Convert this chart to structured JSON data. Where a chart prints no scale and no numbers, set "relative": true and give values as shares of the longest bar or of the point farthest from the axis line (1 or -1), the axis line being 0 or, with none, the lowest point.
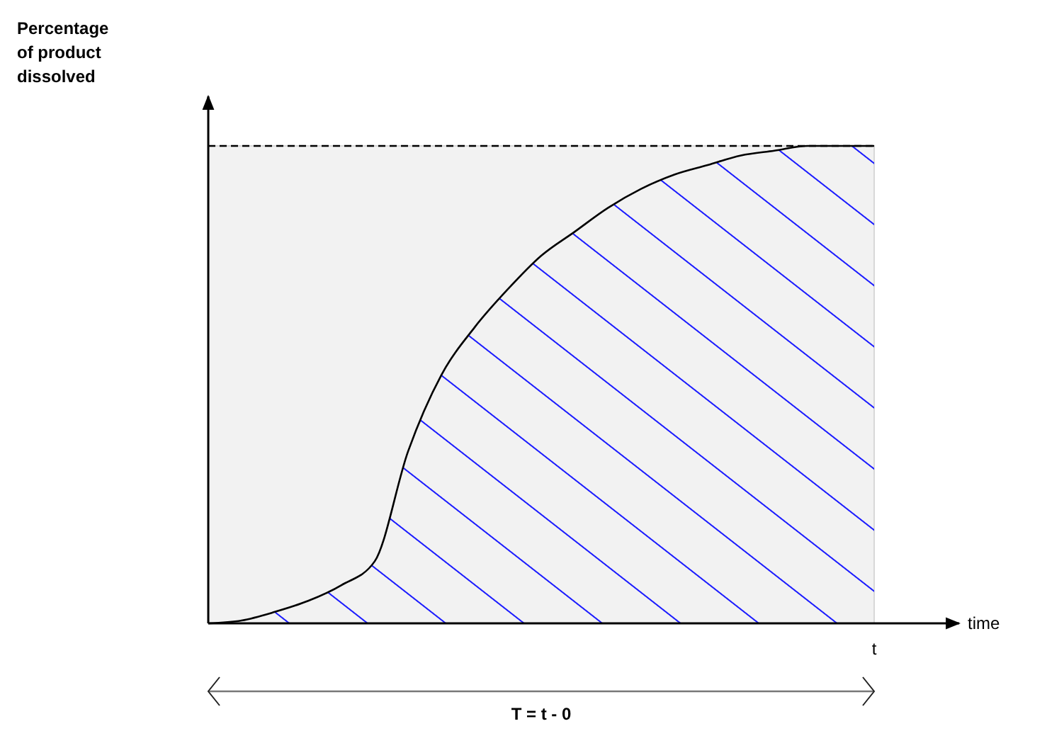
{
  "chart_data": {
    "type": "area",
    "relative": true,
    "categories": [
      null,
      null,
      null,
      null,
      null,
      null,
      null,
      null,
      null,
      null,
      null,
      null,
      null,
      null,
      null,
      null,
      null,
      null,
      null,
      null,
      null
    ],
    "series": [
      {
        "color": "#000000",
        "values": [
          0,
          0.006,
          0.024,
          0.047,
          0.08,
          0.13,
          0.36,
          0.52,
          0.62,
          0.7,
          0.77,
          0.82,
          0.87,
          0.91,
          0.94,
          0.96,
          0.98,
          0.99,
          1,
          1,
          1
        ]
      }
    ],
    "ref_lines": [
      {
        "axis": "y",
        "value": 1,
        "line_style": "dashed"
      }
    ],
    "annotations": [
      "Percentage of product dissolved",
      "time",
      "t",
      "T = t - 0"
    ]
  }
}
